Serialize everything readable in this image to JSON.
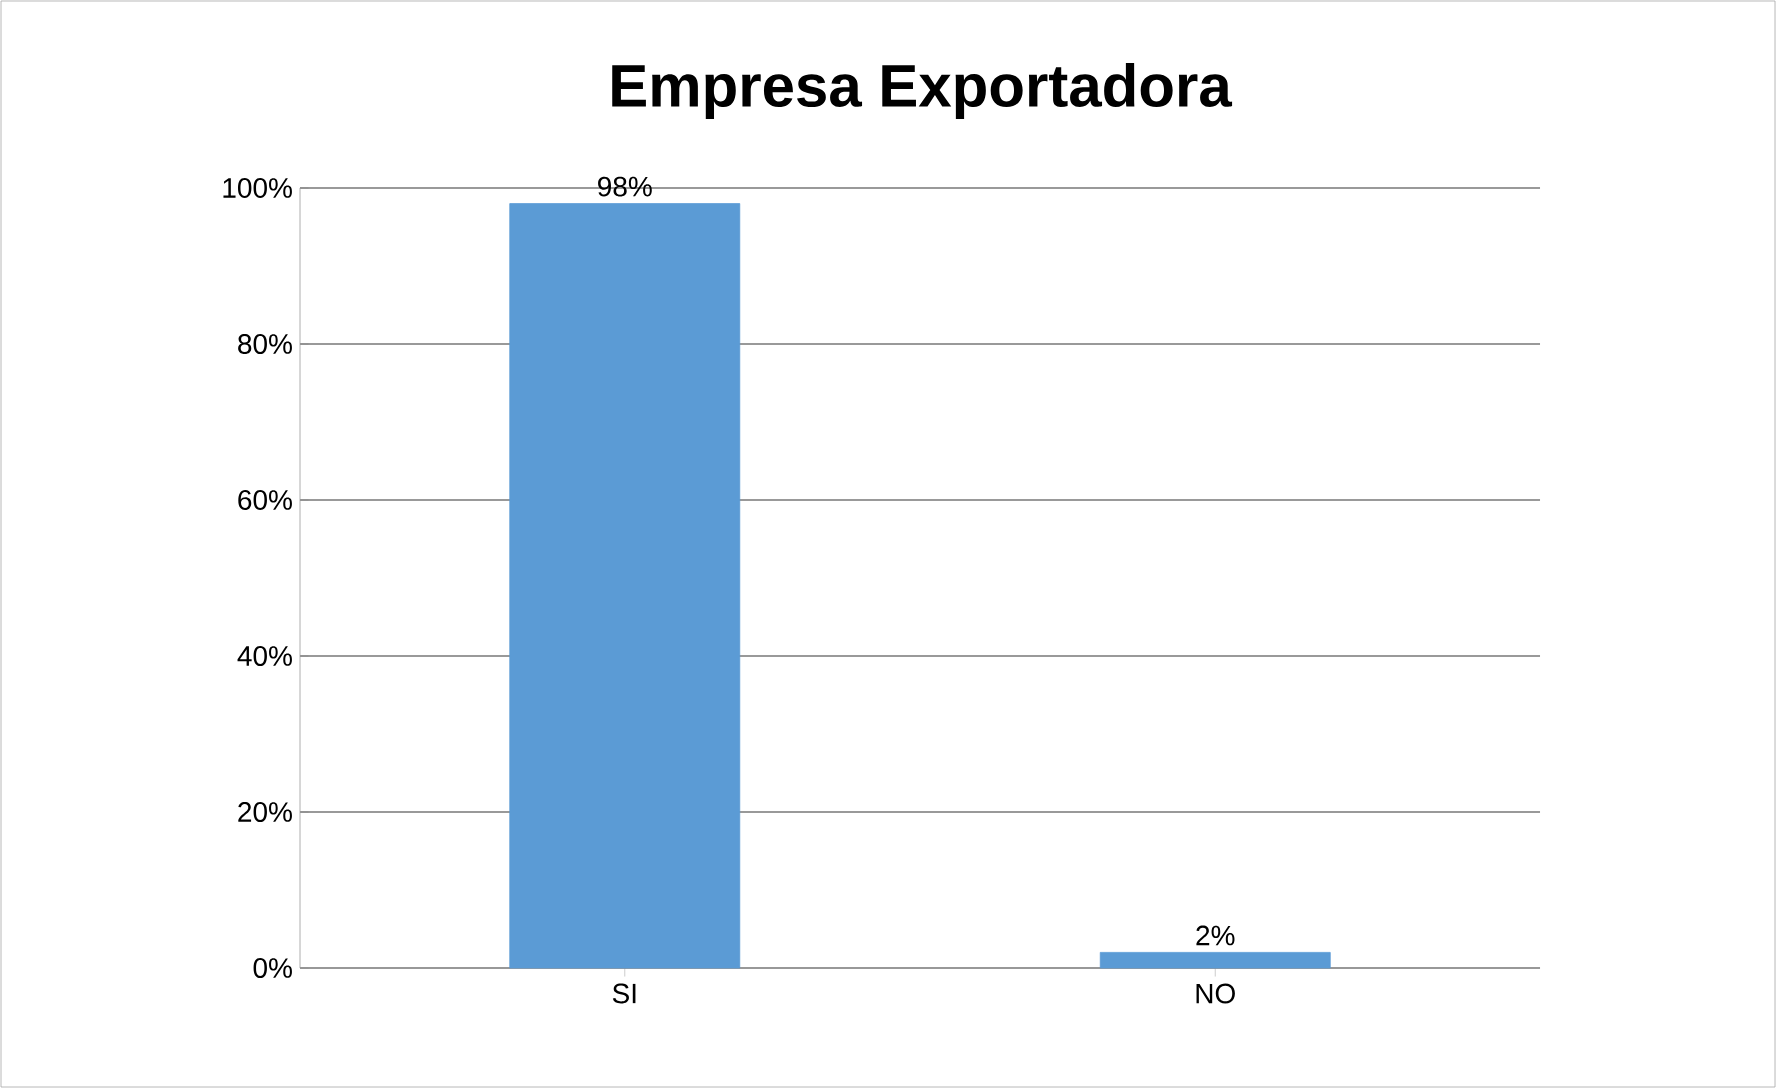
{
  "chart_data": {
    "type": "bar",
    "title": "Empresa Exportadora",
    "categories": [
      "SI",
      "NO"
    ],
    "values": [
      98,
      2
    ],
    "value_labels": [
      "98%",
      "2%"
    ],
    "color": "#5b9bd5",
    "ylim": [
      0,
      100
    ],
    "yticks": [
      {
        "value": 0,
        "label": "0%"
      },
      {
        "value": 20,
        "label": "20%"
      },
      {
        "value": 40,
        "label": "40%"
      },
      {
        "value": 60,
        "label": "60%"
      },
      {
        "value": 80,
        "label": "80%"
      },
      {
        "value": 100,
        "label": "100%"
      }
    ],
    "grid": "y"
  }
}
